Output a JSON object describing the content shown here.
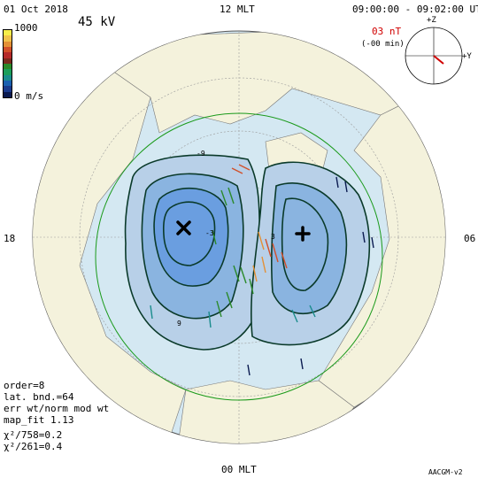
{
  "header": {
    "date": "01 Oct 2018",
    "time_range": "09:00:00 - 09:02:00 UT",
    "potential": "45 kV"
  },
  "scale": {
    "max": "1000",
    "min": "0 m/s",
    "colors": [
      "#f7ee4a",
      "#f0c24a",
      "#e49035",
      "#d2502a",
      "#b52a2a",
      "#7a2a1e",
      "#2b8a2a",
      "#1b9e5a",
      "#1a8c8c",
      "#1a60b0",
      "#1a3a8c",
      "#0a1a50"
    ]
  },
  "imf": {
    "magnitude": "03 nT",
    "delay": "(-00 min)",
    "axis_z": "+Z",
    "axis_y": "+Y",
    "color": "#d00000"
  },
  "mlt": {
    "top": "12 MLT",
    "bottom": "00 MLT",
    "left": "18",
    "right": "06"
  },
  "stats": {
    "order": "order=8",
    "lat_bnd": "lat. bnd.=64",
    "err": "err wt/norm mod wt",
    "map_fit": "map_fit 1.13",
    "chi1": "χ²/758=0.2",
    "chi2": "χ²/261=0.4"
  },
  "footer": {
    "coords": "AACGM-v2"
  },
  "map": {
    "colors": {
      "ocean": "#d4e8f2",
      "land": "#f4f2dc",
      "cell_outer": "#b8d0e8",
      "cell_mid": "#8ab4e0",
      "cell_inner": "#6a9ee0",
      "contour": "#0a3a2a",
      "boundary": "#1a9a1a",
      "grid": "#9a9a9a"
    },
    "contour_labels": [
      "-9",
      "-3",
      "3",
      "9"
    ]
  }
}
